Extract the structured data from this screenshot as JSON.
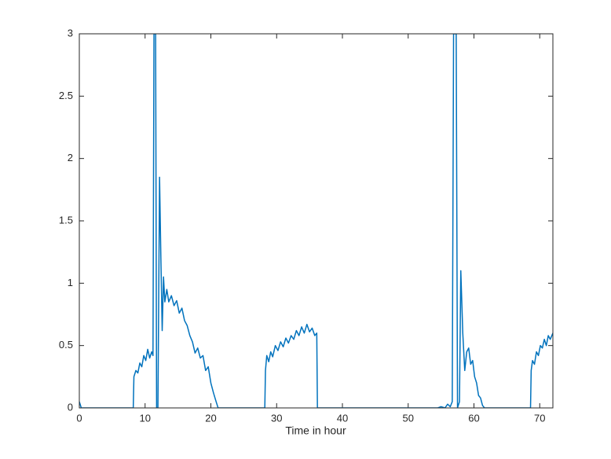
{
  "chart_data": {
    "type": "line",
    "xlabel": "Time in hour",
    "xlim": [
      0,
      72
    ],
    "xticks": [
      0,
      10,
      20,
      30,
      40,
      50,
      60,
      70
    ],
    "ylim": [
      0,
      3
    ],
    "yticks": [
      0,
      0.5,
      1,
      1.5,
      2,
      2.5,
      3
    ],
    "grid": false,
    "series": [
      {
        "color": "#0072bd",
        "x": [
          0,
          0.3,
          8.2,
          8.3,
          8.6,
          8.9,
          9.2,
          9.5,
          9.8,
          10.1,
          10.4,
          10.7,
          11.0,
          11.2,
          11.35,
          11.6,
          11.75,
          11.95,
          12.2,
          12.4,
          12.6,
          12.8,
          13.0,
          13.3,
          13.6,
          14.0,
          14.4,
          14.8,
          15.2,
          15.6,
          16.0,
          16.4,
          16.8,
          17.2,
          17.6,
          18.0,
          18.4,
          18.8,
          19.2,
          19.6,
          20.0,
          20.4,
          20.8,
          21.1,
          28.2,
          28.3,
          28.5,
          28.8,
          29.1,
          29.4,
          29.8,
          30.2,
          30.6,
          31.0,
          31.4,
          31.8,
          32.2,
          32.6,
          33.0,
          33.4,
          33.8,
          34.2,
          34.6,
          35.0,
          35.4,
          35.8,
          36.1,
          36.2,
          54.5,
          55.0,
          55.6,
          56.0,
          56.4,
          56.7,
          56.9,
          57.3,
          57.5,
          57.8,
          58.0,
          58.3,
          58.6,
          58.9,
          59.2,
          59.5,
          59.8,
          60.1,
          60.4,
          60.7,
          61.0,
          61.3,
          61.6,
          68.6,
          68.7,
          68.9,
          69.2,
          69.5,
          69.8,
          70.1,
          70.4,
          70.7,
          71.0,
          71.3,
          71.6,
          72.0
        ],
        "values": [
          0.05,
          0,
          0,
          0.25,
          0.3,
          0.28,
          0.36,
          0.33,
          0.42,
          0.38,
          0.47,
          0.4,
          0.45,
          0.42,
          3,
          3,
          0,
          0,
          1.85,
          1.2,
          0.62,
          1.05,
          0.85,
          0.95,
          0.85,
          0.9,
          0.82,
          0.86,
          0.76,
          0.8,
          0.7,
          0.66,
          0.58,
          0.53,
          0.44,
          0.48,
          0.4,
          0.42,
          0.3,
          0.33,
          0.2,
          0.12,
          0.05,
          0,
          0,
          0.3,
          0.42,
          0.37,
          0.45,
          0.41,
          0.5,
          0.46,
          0.53,
          0.49,
          0.56,
          0.52,
          0.58,
          0.55,
          0.62,
          0.58,
          0.65,
          0.6,
          0.67,
          0.61,
          0.64,
          0.58,
          0.6,
          0,
          0,
          0.01,
          0,
          0.03,
          0.01,
          0.05,
          3,
          3,
          0,
          0.05,
          1.1,
          0.6,
          0.3,
          0.45,
          0.48,
          0.35,
          0.38,
          0.25,
          0.2,
          0.1,
          0.08,
          0.02,
          0,
          0,
          0.3,
          0.38,
          0.35,
          0.45,
          0.42,
          0.5,
          0.48,
          0.55,
          0.5,
          0.58,
          0.55,
          0.6
        ]
      }
    ]
  }
}
